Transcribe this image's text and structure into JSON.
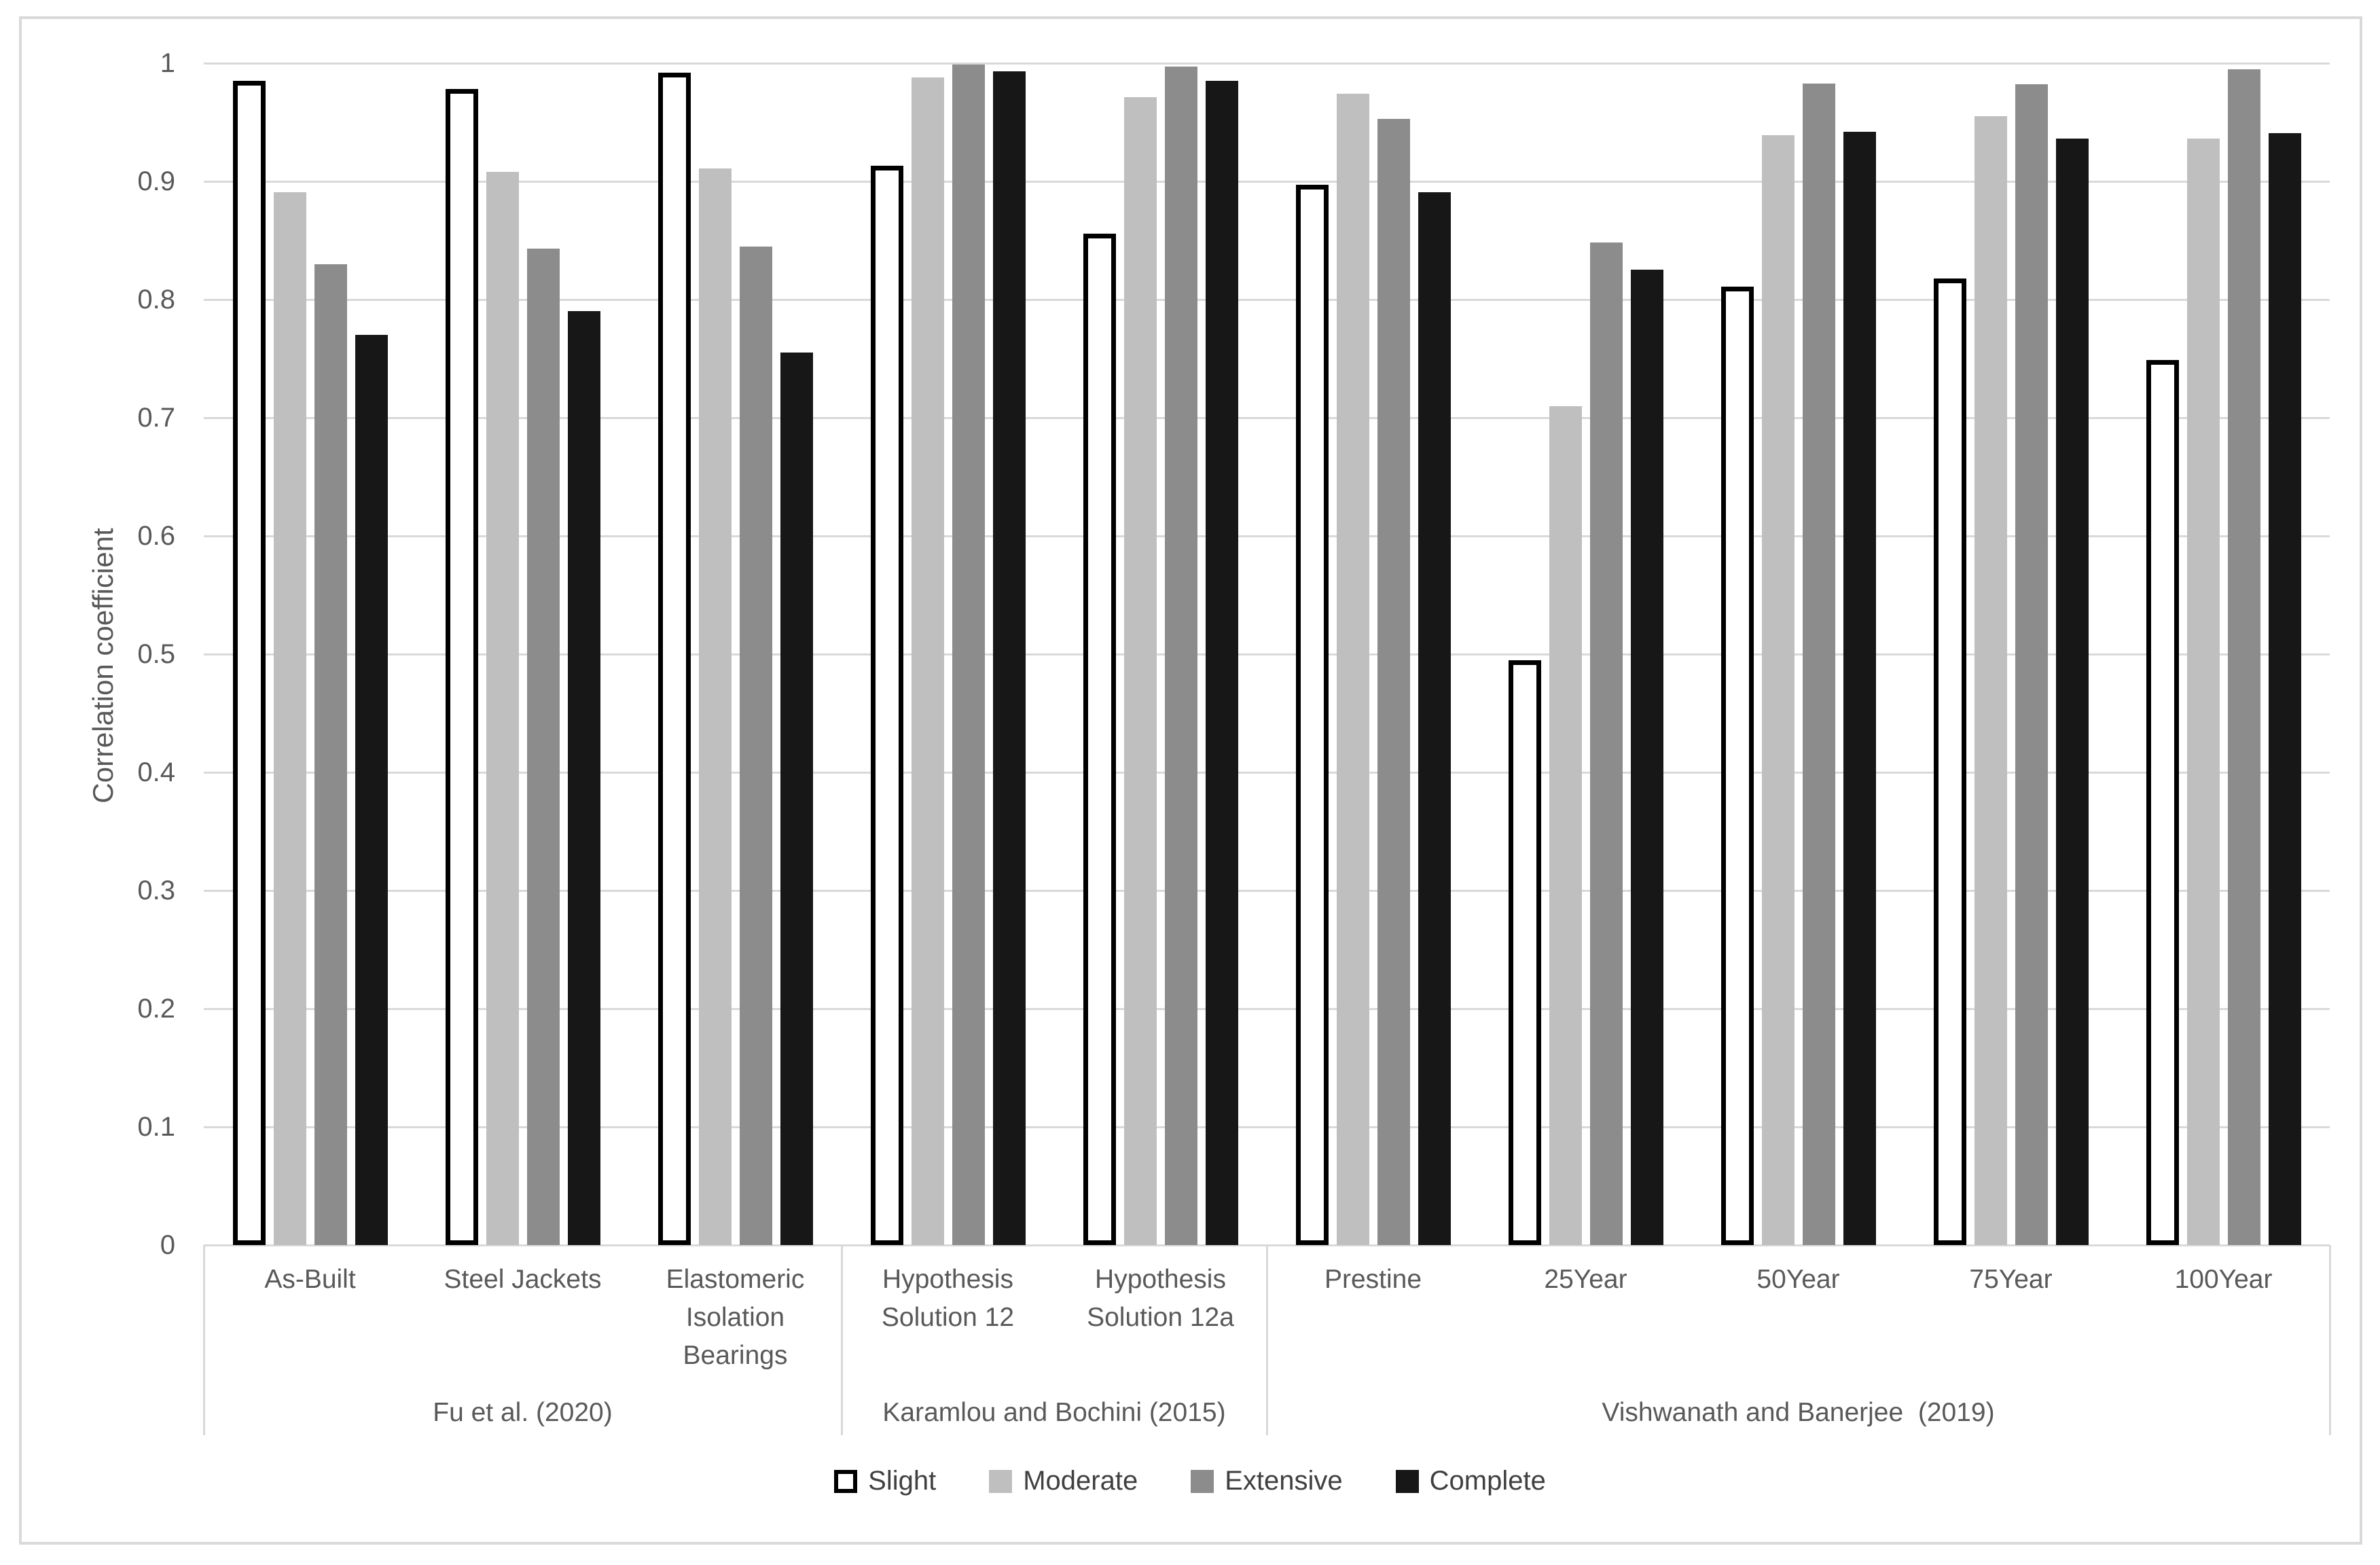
{
  "figure": {
    "background": "#FFFFFF",
    "border_color": "#D9D9D9"
  },
  "chart_data": {
    "type": "bar",
    "title": "",
    "xlabel": "",
    "ylabel": "Correlation coefficient",
    "ylim": [
      0,
      1
    ],
    "ytick_labels": [
      "1",
      "0.9",
      "0.8",
      "0.7",
      "0.6",
      "0.5",
      "0.4",
      "0.3",
      "0.2",
      "0.1",
      "0"
    ],
    "grid": "horizontal",
    "gridline_color": "#D9D9D9",
    "text_color": "#595959",
    "legend_position": "bottom",
    "categories": [
      "As-Built",
      "Steel Jackets",
      "Elastomeric Isolation Bearings",
      "Hypothesis Solution 12",
      "Hypothesis Solution 12a",
      "Prestine",
      "25Year",
      "50Year",
      "75Year",
      "100Year"
    ],
    "category_lines": [
      [
        "As-Built"
      ],
      [
        "Steel Jackets"
      ],
      [
        "Elastomeric",
        "Isolation",
        "Bearings"
      ],
      [
        "Hypothesis",
        "Solution 12"
      ],
      [
        "Hypothesis",
        "Solution 12a"
      ],
      [
        "Prestine"
      ],
      [
        "25Year"
      ],
      [
        "50Year"
      ],
      [
        "75Year"
      ],
      [
        "100Year"
      ]
    ],
    "axis_groups": [
      {
        "label": "Fu et al. (2020)",
        "from": 0,
        "to": 2
      },
      {
        "label": "Karamlou and Bochini (2015)",
        "from": 3,
        "to": 4
      },
      {
        "label": "Vishwanath and Banerjee  (2019)",
        "from": 5,
        "to": 9
      }
    ],
    "series": [
      {
        "name": "Slight",
        "fill": "#FFFFFF",
        "border": "#000000",
        "values": [
          0.985,
          0.978,
          0.992,
          0.913,
          0.856,
          0.897,
          0.495,
          0.811,
          0.818,
          0.749
        ]
      },
      {
        "name": "Moderate",
        "fill": "#BFBFBF",
        "border": null,
        "values": [
          0.891,
          0.908,
          0.911,
          0.988,
          0.971,
          0.974,
          0.71,
          0.939,
          0.955,
          0.936
        ]
      },
      {
        "name": "Extensive",
        "fill": "#8C8C8C",
        "border": null,
        "values": [
          0.83,
          0.843,
          0.845,
          0.999,
          0.997,
          0.953,
          0.848,
          0.983,
          0.982,
          0.995
        ]
      },
      {
        "name": "Complete",
        "fill": "#171717",
        "border": null,
        "values": [
          0.77,
          0.79,
          0.755,
          0.993,
          0.985,
          0.891,
          0.825,
          0.942,
          0.936,
          0.941
        ]
      }
    ]
  }
}
